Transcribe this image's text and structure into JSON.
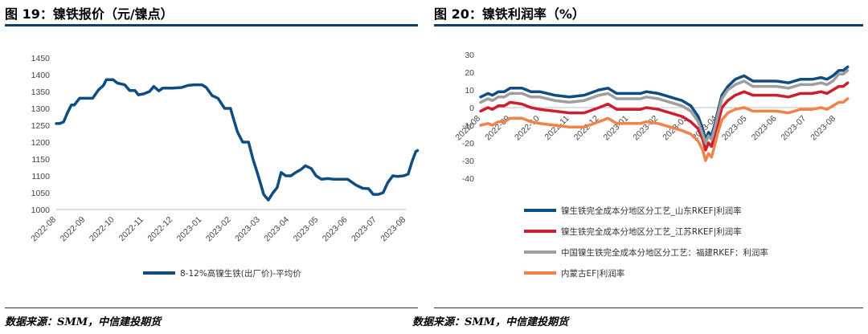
{
  "figures": [
    {
      "title": "图 19：镍铁报价（元/镍点）",
      "source": "数据来源：SMM，中信建投期货"
    },
    {
      "title": "图 20：镍铁利润率（%）",
      "source": "数据来源：SMM，中信建投期货"
    }
  ],
  "chart_data": [
    {
      "type": "line",
      "title": "",
      "xlabel": "",
      "ylabel": "",
      "x_ticks": [
        "2022-08",
        "2022-09",
        "2022-10",
        "2022-11",
        "2022-12",
        "2023-01",
        "2023-02",
        "2023-03",
        "2023-04",
        "2023-05",
        "2023-06",
        "2023-07",
        "2023-08"
      ],
      "y_ticks": [
        1000,
        1050,
        1100,
        1150,
        1200,
        1250,
        1300,
        1350,
        1400,
        1450
      ],
      "ylim": [
        1000,
        1450
      ],
      "grid": false,
      "legend_position": "bottom",
      "series": [
        {
          "name": "8-12%高镍生铁(出厂价)-平均价",
          "color": "#0f4c81",
          "points": [
            [
              0.0,
              1255
            ],
            [
              0.12,
              1255
            ],
            [
              0.25,
              1260
            ],
            [
              0.4,
              1290
            ],
            [
              0.52,
              1310
            ],
            [
              0.62,
              1310
            ],
            [
              0.8,
              1330
            ],
            [
              1.0,
              1330
            ],
            [
              1.25,
              1330
            ],
            [
              1.45,
              1355
            ],
            [
              1.62,
              1368
            ],
            [
              1.72,
              1385
            ],
            [
              1.95,
              1385
            ],
            [
              2.1,
              1375
            ],
            [
              2.35,
              1370
            ],
            [
              2.52,
              1353
            ],
            [
              2.7,
              1353
            ],
            [
              2.82,
              1340
            ],
            [
              3.0,
              1343
            ],
            [
              3.2,
              1350
            ],
            [
              3.35,
              1365
            ],
            [
              3.52,
              1352
            ],
            [
              3.65,
              1360
            ],
            [
              4.0,
              1360
            ],
            [
              4.3,
              1362
            ],
            [
              4.52,
              1368
            ],
            [
              4.75,
              1370
            ],
            [
              5.0,
              1370
            ],
            [
              5.15,
              1362
            ],
            [
              5.35,
              1338
            ],
            [
              5.55,
              1330
            ],
            [
              5.78,
              1300
            ],
            [
              5.98,
              1300
            ],
            [
              6.08,
              1270
            ],
            [
              6.22,
              1230
            ],
            [
              6.4,
              1200
            ],
            [
              6.6,
              1200
            ],
            [
              6.75,
              1150
            ],
            [
              6.88,
              1115
            ],
            [
              7.0,
              1080
            ],
            [
              7.12,
              1045
            ],
            [
              7.28,
              1028
            ],
            [
              7.44,
              1050
            ],
            [
              7.58,
              1065
            ],
            [
              7.72,
              1110
            ],
            [
              7.88,
              1100
            ],
            [
              8.05,
              1100
            ],
            [
              8.22,
              1110
            ],
            [
              8.42,
              1120
            ],
            [
              8.55,
              1130
            ],
            [
              8.75,
              1122
            ],
            [
              8.92,
              1100
            ],
            [
              9.1,
              1090
            ],
            [
              9.32,
              1092
            ],
            [
              9.5,
              1090
            ],
            [
              9.75,
              1090
            ],
            [
              10.0,
              1090
            ],
            [
              10.28,
              1073
            ],
            [
              10.52,
              1063
            ],
            [
              10.72,
              1062
            ],
            [
              10.88,
              1045
            ],
            [
              11.05,
              1045
            ],
            [
              11.22,
              1050
            ],
            [
              11.38,
              1080
            ],
            [
              11.55,
              1100
            ],
            [
              11.72,
              1098
            ],
            [
              11.92,
              1100
            ],
            [
              12.08,
              1105
            ],
            [
              12.2,
              1140
            ],
            [
              12.34,
              1172
            ],
            [
              12.4,
              1175
            ]
          ]
        }
      ]
    },
    {
      "type": "line",
      "title": "",
      "xlabel": "",
      "ylabel": "",
      "x_ticks": [
        "2022-08",
        "2022-09",
        "2022-10",
        "2022-11",
        "2022-12",
        "2023-01",
        "2023-02",
        "2023-03",
        "2023-04",
        "2023-05",
        "2023-06",
        "2023-07",
        "2023-08"
      ],
      "y_ticks": [
        -40,
        -30,
        -20,
        -10,
        0,
        10,
        20,
        30
      ],
      "ylim": [
        -40,
        30
      ],
      "grid": false,
      "legend_position": "bottom",
      "series": [
        {
          "name": "镍生铁完全成本分地区分工艺_山东RKEF|利润率",
          "color": "#0f4c81",
          "points": [
            [
              0.0,
              6
            ],
            [
              0.25,
              8
            ],
            [
              0.4,
              7
            ],
            [
              0.6,
              9
            ],
            [
              0.8,
              9
            ],
            [
              1.0,
              11
            ],
            [
              1.4,
              11
            ],
            [
              1.7,
              9
            ],
            [
              2.0,
              9
            ],
            [
              2.5,
              7
            ],
            [
              3.0,
              6
            ],
            [
              3.5,
              7
            ],
            [
              4.0,
              10
            ],
            [
              4.3,
              11
            ],
            [
              4.6,
              8
            ],
            [
              5.0,
              8
            ],
            [
              5.4,
              8
            ],
            [
              5.6,
              9
            ],
            [
              6.0,
              8
            ],
            [
              6.4,
              6
            ],
            [
              6.8,
              4
            ],
            [
              7.1,
              1
            ],
            [
              7.35,
              -5
            ],
            [
              7.5,
              -12
            ],
            [
              7.6,
              -18
            ],
            [
              7.7,
              -14
            ],
            [
              7.8,
              -16
            ],
            [
              7.9,
              -10
            ],
            [
              8.0,
              -3
            ],
            [
              8.15,
              7
            ],
            [
              8.35,
              12
            ],
            [
              8.6,
              16
            ],
            [
              8.9,
              18
            ],
            [
              9.2,
              15
            ],
            [
              9.6,
              15
            ],
            [
              10.0,
              15
            ],
            [
              10.4,
              14
            ],
            [
              10.8,
              16
            ],
            [
              11.2,
              16
            ],
            [
              11.5,
              17
            ],
            [
              11.7,
              16
            ],
            [
              11.9,
              18
            ],
            [
              12.1,
              21
            ],
            [
              12.25,
              21
            ],
            [
              12.4,
              23
            ]
          ]
        },
        {
          "name": "镍生铁完全成本分地区分工艺_江苏RKEF|利润率",
          "color": "#cc1f2d",
          "points": [
            [
              0.0,
              -2
            ],
            [
              0.25,
              0
            ],
            [
              0.4,
              -1
            ],
            [
              0.6,
              1
            ],
            [
              0.8,
              1
            ],
            [
              1.0,
              3
            ],
            [
              1.4,
              2
            ],
            [
              1.7,
              0
            ],
            [
              2.0,
              -1
            ],
            [
              2.5,
              -2
            ],
            [
              3.0,
              -3
            ],
            [
              3.5,
              -3
            ],
            [
              4.0,
              0
            ],
            [
              4.3,
              2
            ],
            [
              4.6,
              -1
            ],
            [
              5.0,
              -1
            ],
            [
              5.4,
              -1
            ],
            [
              5.6,
              0
            ],
            [
              6.0,
              -1
            ],
            [
              6.4,
              -3
            ],
            [
              6.8,
              -5
            ],
            [
              7.1,
              -8
            ],
            [
              7.35,
              -12
            ],
            [
              7.5,
              -18
            ],
            [
              7.6,
              -24
            ],
            [
              7.7,
              -20
            ],
            [
              7.8,
              -22
            ],
            [
              7.9,
              -16
            ],
            [
              8.0,
              -10
            ],
            [
              8.15,
              0
            ],
            [
              8.35,
              4
            ],
            [
              8.6,
              7
            ],
            [
              8.9,
              9
            ],
            [
              9.2,
              7
            ],
            [
              9.6,
              7
            ],
            [
              10.0,
              7
            ],
            [
              10.4,
              6
            ],
            [
              10.8,
              8
            ],
            [
              11.2,
              8
            ],
            [
              11.5,
              9
            ],
            [
              11.7,
              8
            ],
            [
              11.9,
              10
            ],
            [
              12.1,
              12
            ],
            [
              12.25,
              12
            ],
            [
              12.4,
              14
            ]
          ]
        },
        {
          "name": "中国镍生铁完全成本分地区分工艺：福建RKEF：利润率",
          "color": "#9e9e9e",
          "points": [
            [
              0.0,
              3
            ],
            [
              0.25,
              5
            ],
            [
              0.4,
              4
            ],
            [
              0.6,
              6
            ],
            [
              0.8,
              6
            ],
            [
              1.0,
              8
            ],
            [
              1.4,
              8
            ],
            [
              1.7,
              6
            ],
            [
              2.0,
              6
            ],
            [
              2.5,
              4
            ],
            [
              3.0,
              3
            ],
            [
              3.5,
              4
            ],
            [
              4.0,
              7
            ],
            [
              4.3,
              8
            ],
            [
              4.6,
              5
            ],
            [
              5.0,
              5
            ],
            [
              5.4,
              5
            ],
            [
              5.6,
              6
            ],
            [
              6.0,
              5
            ],
            [
              6.4,
              3
            ],
            [
              6.8,
              1
            ],
            [
              7.1,
              -2
            ],
            [
              7.35,
              -8
            ],
            [
              7.5,
              -15
            ],
            [
              7.6,
              -20
            ],
            [
              7.7,
              -16
            ],
            [
              7.8,
              -18
            ],
            [
              7.9,
              -12
            ],
            [
              8.0,
              -5
            ],
            [
              8.15,
              5
            ],
            [
              8.35,
              10
            ],
            [
              8.6,
              13
            ],
            [
              8.9,
              15
            ],
            [
              9.2,
              12
            ],
            [
              9.6,
              12
            ],
            [
              10.0,
              12
            ],
            [
              10.4,
              11
            ],
            [
              10.8,
              13
            ],
            [
              11.2,
              13
            ],
            [
              11.5,
              14
            ],
            [
              11.7,
              13
            ],
            [
              11.9,
              15
            ],
            [
              12.1,
              19
            ],
            [
              12.25,
              19
            ],
            [
              12.4,
              21
            ]
          ]
        },
        {
          "name": "内蒙古EF|利润率",
          "color": "#f0824c",
          "points": [
            [
              0.0,
              -10
            ],
            [
              0.25,
              -9
            ],
            [
              0.4,
              -10
            ],
            [
              0.6,
              -8
            ],
            [
              0.8,
              -8
            ],
            [
              1.0,
              -6
            ],
            [
              1.4,
              -6
            ],
            [
              1.7,
              -8
            ],
            [
              2.0,
              -9
            ],
            [
              2.5,
              -10
            ],
            [
              3.0,
              -11
            ],
            [
              3.5,
              -11
            ],
            [
              4.0,
              -8
            ],
            [
              4.3,
              -6
            ],
            [
              4.6,
              -9
            ],
            [
              5.0,
              -9
            ],
            [
              5.4,
              -9
            ],
            [
              5.6,
              -8
            ],
            [
              6.0,
              -9
            ],
            [
              6.4,
              -11
            ],
            [
              6.8,
              -13
            ],
            [
              7.1,
              -15
            ],
            [
              7.35,
              -19
            ],
            [
              7.5,
              -24
            ],
            [
              7.6,
              -30
            ],
            [
              7.7,
              -26
            ],
            [
              7.8,
              -28
            ],
            [
              7.9,
              -22
            ],
            [
              8.0,
              -15
            ],
            [
              8.15,
              -7
            ],
            [
              8.35,
              -3
            ],
            [
              8.6,
              -1
            ],
            [
              8.9,
              0
            ],
            [
              9.2,
              -2
            ],
            [
              9.6,
              -2
            ],
            [
              10.0,
              -2
            ],
            [
              10.4,
              -3
            ],
            [
              10.8,
              -1
            ],
            [
              11.2,
              -1
            ],
            [
              11.5,
              0
            ],
            [
              11.7,
              -1
            ],
            [
              11.9,
              1
            ],
            [
              12.1,
              3
            ],
            [
              12.25,
              3
            ],
            [
              12.4,
              5
            ]
          ]
        }
      ]
    }
  ]
}
